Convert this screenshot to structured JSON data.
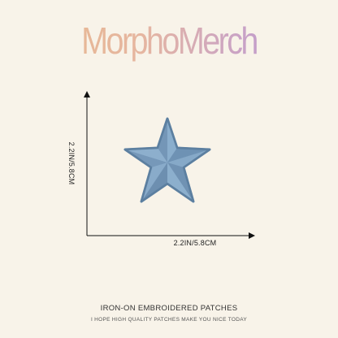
{
  "brand": {
    "name": "MorphoMerch"
  },
  "dimensions": {
    "height_label": "2.2IN/5.8CM",
    "width_label": "2.2IN/5.8CM"
  },
  "product": {
    "shape": "star-patch",
    "color": "#7fa3c2"
  },
  "footer": {
    "title": "IRON-ON EMBROIDERED PATCHES",
    "tagline": "I HOPE HIGH QUALITY PATCHES MAKE YOU NICE TODAY"
  }
}
